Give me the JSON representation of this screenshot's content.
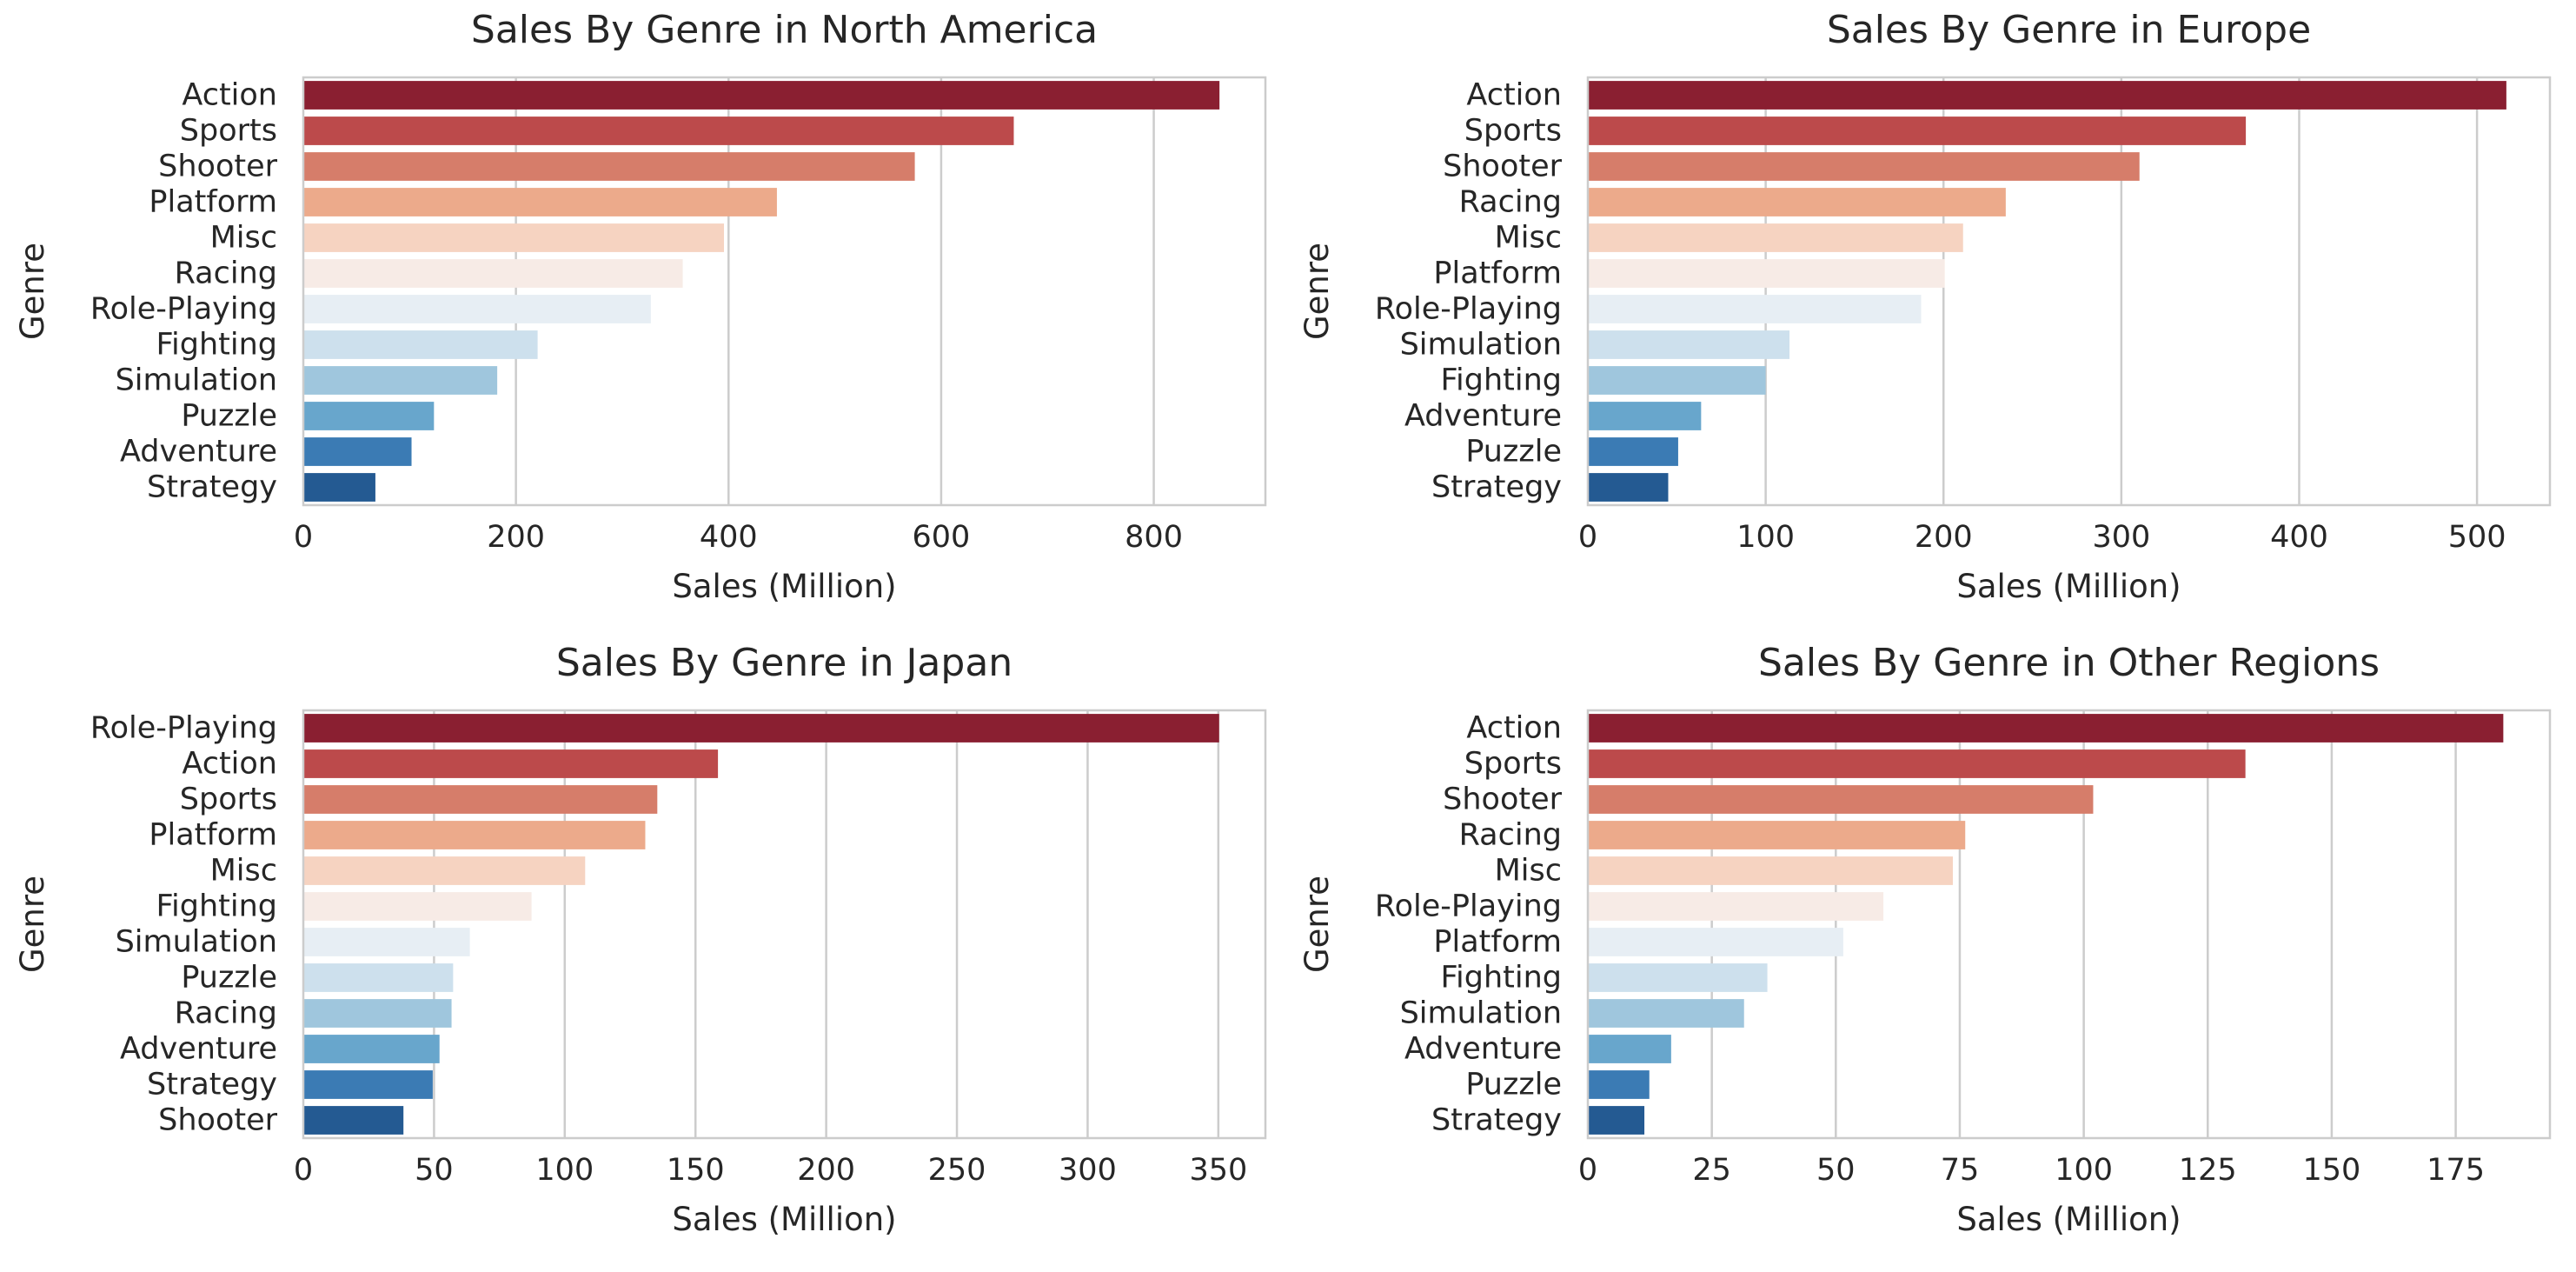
{
  "palette": [
    "#8a1f31",
    "#bc4a4b",
    "#d67d6a",
    "#ecaa8b",
    "#f6d3c1",
    "#f7ebe6",
    "#e7eef4",
    "#cde0ed",
    "#9fc6dd",
    "#68a6cc",
    "#3b7bb4",
    "#245a92"
  ],
  "styles": {
    "axis_frame": "#cccccc",
    "grid": "#cccccc",
    "text": "#262626",
    "background": "#ffffff"
  },
  "chart_data": [
    {
      "type": "bar",
      "orientation": "horizontal",
      "title": "Sales By Genre in North America",
      "xlabel": "Sales (Million)",
      "ylabel": "Genre",
      "xlim": [
        0,
        905
      ],
      "xticks": [
        0,
        200,
        400,
        600,
        800
      ],
      "grid": true,
      "categories": [
        "Action",
        "Sports",
        "Shooter",
        "Platform",
        "Misc",
        "Racing",
        "Role-Playing",
        "Fighting",
        "Simulation",
        "Puzzle",
        "Adventure",
        "Strategy"
      ],
      "values": [
        861.8,
        668.3,
        575.2,
        445.5,
        395.7,
        356.9,
        326.9,
        220.4,
        182.4,
        122.9,
        101.8,
        67.8
      ]
    },
    {
      "type": "bar",
      "orientation": "horizontal",
      "title": "Sales By Genre in Europe",
      "xlabel": "Sales (Million)",
      "ylabel": "Genre",
      "xlim": [
        0,
        541
      ],
      "xticks": [
        0,
        100,
        200,
        300,
        400,
        500
      ],
      "grid": true,
      "categories": [
        "Action",
        "Sports",
        "Shooter",
        "Racing",
        "Misc",
        "Platform",
        "Role-Playing",
        "Simulation",
        "Fighting",
        "Adventure",
        "Puzzle",
        "Strategy"
      ],
      "values": [
        516.5,
        370.0,
        310.2,
        235.0,
        211.0,
        200.7,
        187.4,
        113.4,
        100.0,
        63.7,
        50.8,
        45.2
      ]
    },
    {
      "type": "bar",
      "orientation": "horizontal",
      "title": "Sales By Genre in Japan",
      "xlabel": "Sales (Million)",
      "ylabel": "Genre",
      "xlim": [
        0,
        368
      ],
      "xticks": [
        0,
        50,
        100,
        150,
        200,
        250,
        300,
        350
      ],
      "grid": true,
      "categories": [
        "Role-Playing",
        "Action",
        "Sports",
        "Platform",
        "Misc",
        "Fighting",
        "Simulation",
        "Puzzle",
        "Racing",
        "Adventure",
        "Strategy",
        "Shooter"
      ],
      "values": [
        350.3,
        158.6,
        135.4,
        130.8,
        107.8,
        87.3,
        63.7,
        57.3,
        56.7,
        52.1,
        49.5,
        38.3
      ]
    },
    {
      "type": "bar",
      "orientation": "horizontal",
      "title": "Sales By Genre in Other Regions",
      "xlabel": "Sales (Million)",
      "ylabel": "Genre",
      "xlim": [
        0,
        194
      ],
      "xticks": [
        0,
        25,
        50,
        75,
        100,
        125,
        150,
        175
      ],
      "grid": true,
      "categories": [
        "Action",
        "Sports",
        "Shooter",
        "Racing",
        "Misc",
        "Role-Playing",
        "Platform",
        "Fighting",
        "Simulation",
        "Adventure",
        "Puzzle",
        "Strategy"
      ],
      "values": [
        184.6,
        132.6,
        101.9,
        76.1,
        73.6,
        59.6,
        51.5,
        36.2,
        31.5,
        16.8,
        12.4,
        11.4
      ]
    }
  ]
}
